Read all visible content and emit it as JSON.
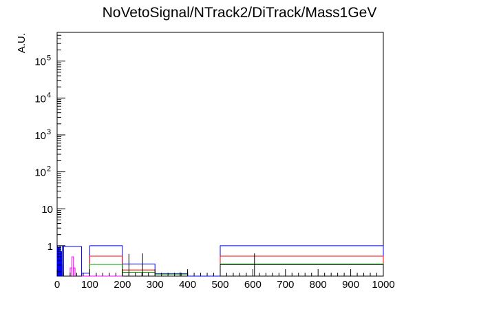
{
  "chart_data": {
    "type": "histogram",
    "title": "NoVetoSignal/NTrack2/DiTrack/Mass1GeV",
    "ylabel": "A.U.",
    "xlabel": "",
    "xlim": [
      0,
      1000
    ],
    "ylim": [
      0.15,
      600000
    ],
    "yscale": "log",
    "grid": false,
    "legend": "none",
    "x_ticks": [
      {
        "value": 0,
        "label": "0"
      },
      {
        "value": 100,
        "label": "100"
      },
      {
        "value": 200,
        "label": "200"
      },
      {
        "value": 300,
        "label": "300"
      },
      {
        "value": 400,
        "label": "400"
      },
      {
        "value": 500,
        "label": "500"
      },
      {
        "value": 600,
        "label": "600"
      },
      {
        "value": 700,
        "label": "700"
      },
      {
        "value": 800,
        "label": "800"
      },
      {
        "value": 900,
        "label": "900"
      },
      {
        "value": 1000,
        "label": "1000"
      }
    ],
    "y_ticks": [
      {
        "value": 1,
        "base": "1",
        "exp": ""
      },
      {
        "value": 10,
        "base": "10",
        "exp": ""
      },
      {
        "value": 100,
        "base": "10",
        "exp": "2"
      },
      {
        "value": 1000,
        "base": "10",
        "exp": "3"
      },
      {
        "value": 10000,
        "base": "10",
        "exp": "4"
      },
      {
        "value": 100000,
        "base": "10",
        "exp": "5"
      }
    ],
    "series": [
      {
        "color": "#0000ff",
        "bins": [
          {
            "x0": 0,
            "x1": 2,
            "y": 0.95
          },
          {
            "x0": 2,
            "x1": 4,
            "y": 0.6
          },
          {
            "x0": 4,
            "x1": 6,
            "y": 0.9
          },
          {
            "x0": 6,
            "x1": 8,
            "y": 0.45
          },
          {
            "x0": 8,
            "x1": 10,
            "y": 0.95
          },
          {
            "x0": 10,
            "x1": 12,
            "y": 0.55
          },
          {
            "x0": 12,
            "x1": 14,
            "y": 0.7
          },
          {
            "x0": 14,
            "x1": 16,
            "y": 0.3
          },
          {
            "x0": 16,
            "x1": 20,
            "y": 0.95
          },
          {
            "x0": 20,
            "x1": 75,
            "y": 0.95
          },
          {
            "x0": 75,
            "x1": 100,
            "y": 0.18
          },
          {
            "x0": 100,
            "x1": 200,
            "y": 1.0
          },
          {
            "x0": 200,
            "x1": 300,
            "y": 0.32
          },
          {
            "x0": 300,
            "x1": 400,
            "y": 0.175
          },
          {
            "x0": 400,
            "x1": 500,
            "y": 0.15
          },
          {
            "x0": 500,
            "x1": 1000,
            "y": 1.0
          }
        ]
      },
      {
        "color": "#ff0000",
        "bins": [
          {
            "x0": 100,
            "x1": 200,
            "y": 0.52
          },
          {
            "x0": 200,
            "x1": 300,
            "y": 0.22
          },
          {
            "x0": 500,
            "x1": 1000,
            "y": 0.52
          }
        ]
      },
      {
        "color": "#00aa00",
        "bins": [
          {
            "x0": 100,
            "x1": 200,
            "y": 0.31
          },
          {
            "x0": 200,
            "x1": 300,
            "y": 0.19
          },
          {
            "x0": 300,
            "x1": 400,
            "y": 0.17
          },
          {
            "x0": 500,
            "x1": 1000,
            "y": 0.32
          }
        ]
      },
      {
        "color": "#000000",
        "bins": [
          {
            "x0": 500,
            "x1": 1000,
            "y": 0.31
          }
        ]
      },
      {
        "color": "#ff00ff",
        "bins": [
          {
            "x0": 40,
            "x1": 45,
            "y": 0.25
          },
          {
            "x0": 45,
            "x1": 50,
            "y": 0.5
          },
          {
            "x0": 50,
            "x1": 55,
            "y": 0.25
          },
          {
            "x0": 75,
            "x1": 200,
            "y": 0.15
          }
        ]
      }
    ],
    "error_bars": [
      {
        "color": "#000000",
        "x": 220,
        "y_low": 0.15,
        "y_high": 0.6
      },
      {
        "color": "#000000",
        "x": 262,
        "y_low": 0.15,
        "y_high": 0.62
      },
      {
        "color": "#000000",
        "x": 377,
        "y_low": 0.15,
        "y_high": 0.19
      },
      {
        "color": "#000000",
        "x": 400,
        "y_low": 0.15,
        "y_high": 0.2
      },
      {
        "color": "#000000",
        "x": 605,
        "y_low": 0.15,
        "y_high": 0.62
      }
    ]
  }
}
